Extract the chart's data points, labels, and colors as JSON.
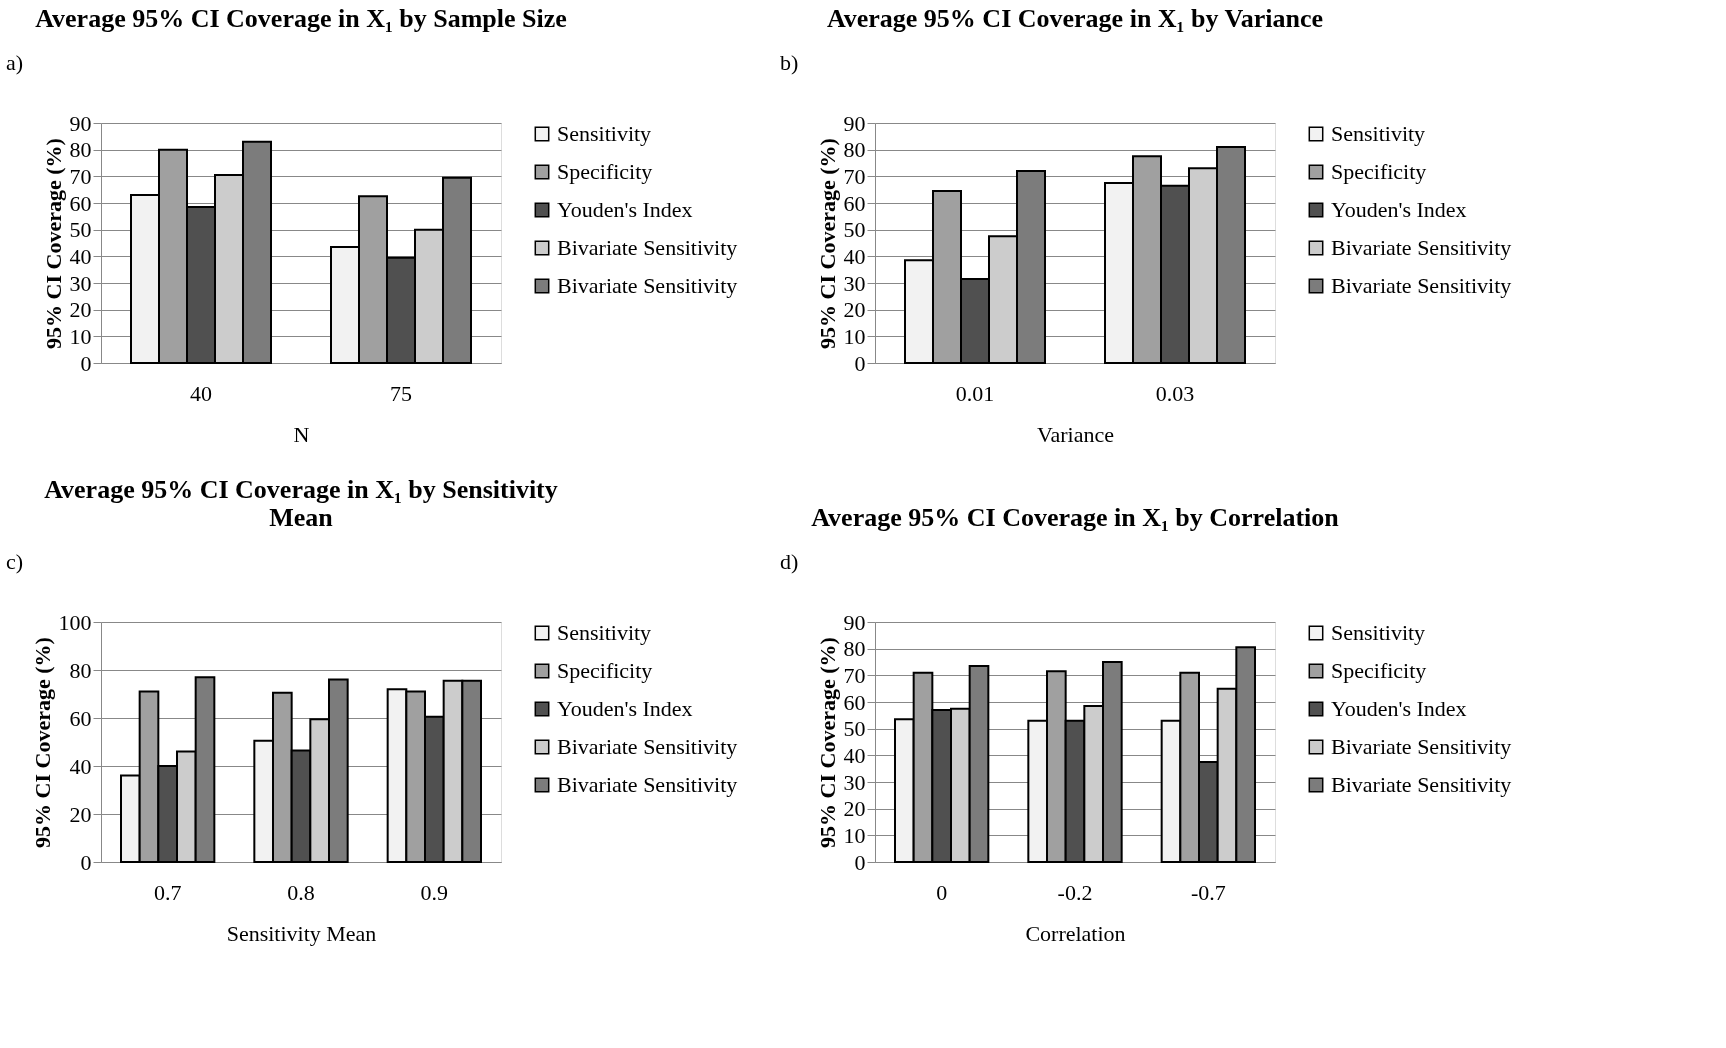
{
  "chart_data": [
    {
      "type": "bar",
      "title": "Average 95% CI Coverage in X₁ by Sample Size",
      "xlabel": "N",
      "ylabel": "95% CI Coverage (%)",
      "annotations": [
        "a)"
      ],
      "categories": [
        "40",
        "75"
      ],
      "ylim": [
        0,
        90
      ],
      "yticks": [
        0,
        10,
        20,
        30,
        40,
        50,
        60,
        70,
        80,
        90
      ],
      "grid": "y",
      "legend": "right",
      "series": [
        {
          "name": "Sensitivity",
          "color": "#f2f2f2",
          "values": [
            63,
            43.5
          ]
        },
        {
          "name": "Specificity",
          "color": "#a0a0a0",
          "values": [
            80,
            62.5
          ]
        },
        {
          "name": "Youden's Index",
          "color": "#505050",
          "values": [
            58.5,
            39.5
          ]
        },
        {
          "name": "Bivariate Sensitivity",
          "color": "#cccccc",
          "values": [
            70.5,
            50
          ]
        },
        {
          "name": "Bivariate Sensitivity",
          "color": "#7c7c7c",
          "values": [
            83,
            69.5
          ]
        }
      ]
    },
    {
      "type": "bar",
      "title": "Average 95% CI Coverage in X₁ by Variance",
      "xlabel": "Variance",
      "ylabel": "95% CI Coverage (%)",
      "annotations": [
        "b)"
      ],
      "categories": [
        "0.01",
        "0.03"
      ],
      "ylim": [
        0,
        90
      ],
      "yticks": [
        0,
        10,
        20,
        30,
        40,
        50,
        60,
        70,
        80,
        90
      ],
      "grid": "y",
      "legend": "right",
      "series": [
        {
          "name": "Sensitivity",
          "color": "#f2f2f2",
          "values": [
            38.5,
            67.5
          ]
        },
        {
          "name": "Specificity",
          "color": "#a0a0a0",
          "values": [
            64.5,
            77.5
          ]
        },
        {
          "name": "Youden's Index",
          "color": "#505050",
          "values": [
            31.5,
            66.5
          ]
        },
        {
          "name": "Bivariate Sensitivity",
          "color": "#cccccc",
          "values": [
            47.5,
            73
          ]
        },
        {
          "name": "Bivariate Sensitivity",
          "color": "#7c7c7c",
          "values": [
            72,
            81
          ]
        }
      ]
    },
    {
      "type": "bar",
      "title": "Average 95% CI Coverage in X₁ by Sensitivity\nMean",
      "xlabel": "Sensitivity Mean",
      "ylabel": "95% CI Coverage (%)",
      "annotations": [
        "c)"
      ],
      "categories": [
        "0.7",
        "0.8",
        "0.9"
      ],
      "ylim": [
        0,
        100
      ],
      "yticks": [
        0,
        20,
        40,
        60,
        80,
        100
      ],
      "grid": "y",
      "legend": "right",
      "series": [
        {
          "name": "Sensitivity",
          "color": "#f2f2f2",
          "values": [
            36,
            50.5,
            72
          ]
        },
        {
          "name": "Specificity",
          "color": "#a0a0a0",
          "values": [
            71,
            70.5,
            71
          ]
        },
        {
          "name": "Youden's Index",
          "color": "#505050",
          "values": [
            40,
            46.5,
            60.5
          ]
        },
        {
          "name": "Bivariate Sensitivity",
          "color": "#cccccc",
          "values": [
            46,
            59.5,
            75.5
          ]
        },
        {
          "name": "Bivariate Sensitivity",
          "color": "#7c7c7c",
          "values": [
            77,
            76,
            75.5
          ]
        }
      ]
    },
    {
      "type": "bar",
      "title": "Average 95% CI Coverage in X₁ by Correlation",
      "xlabel": "Correlation",
      "ylabel": "95% CI Coverage (%)",
      "annotations": [
        "d)"
      ],
      "categories": [
        "0",
        "-0.2",
        "-0.7"
      ],
      "ylim": [
        0,
        90
      ],
      "yticks": [
        0,
        10,
        20,
        30,
        40,
        50,
        60,
        70,
        80,
        90
      ],
      "grid": "y",
      "legend": "right",
      "series": [
        {
          "name": "Sensitivity",
          "color": "#f2f2f2",
          "values": [
            53.5,
            53,
            53
          ]
        },
        {
          "name": "Specificity",
          "color": "#a0a0a0",
          "values": [
            71,
            71.5,
            71
          ]
        },
        {
          "name": "Youden's Index",
          "color": "#505050",
          "values": [
            57,
            53,
            37.5
          ]
        },
        {
          "name": "Bivariate Sensitivity",
          "color": "#cccccc",
          "values": [
            57.5,
            58.5,
            65
          ]
        },
        {
          "name": "Bivariate Sensitivity",
          "color": "#7c7c7c",
          "values": [
            73.5,
            75,
            80.5
          ]
        }
      ]
    }
  ]
}
